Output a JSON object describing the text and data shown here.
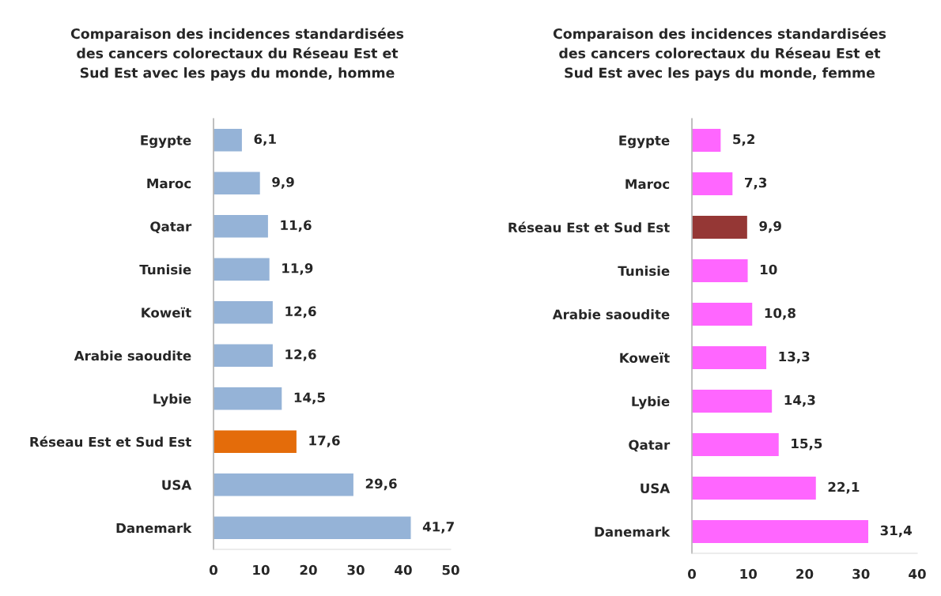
{
  "chart_data": [
    {
      "type": "bar",
      "orientation": "horizontal",
      "title": "Comparaison des incidences standardisées\ndes cancers colorectaux du Réseau Est et\nSud Est avec les pays du monde, homme",
      "categories": [
        "Egypte",
        "Maroc",
        "Qatar",
        "Tunisie",
        "Koweït",
        "Arabie saoudite",
        "Lybie",
        "Réseau Est et Sud Est",
        "USA",
        "Danemark"
      ],
      "values": [
        6.1,
        9.9,
        11.6,
        11.9,
        12.6,
        12.6,
        14.5,
        17.6,
        29.6,
        41.7
      ],
      "value_labels": [
        "6,1",
        "9,9",
        "11,6",
        "11,9",
        "12,6",
        "12,6",
        "14,5",
        "17,6",
        "29,6",
        "41,7"
      ],
      "colors": [
        "#95b3d7",
        "#95b3d7",
        "#95b3d7",
        "#95b3d7",
        "#95b3d7",
        "#95b3d7",
        "#95b3d7",
        "#e46c0a",
        "#95b3d7",
        "#95b3d7"
      ],
      "xlim": [
        0,
        50
      ],
      "xticks": [
        0,
        10,
        20,
        30,
        40,
        50
      ],
      "grid": false,
      "legend": false
    },
    {
      "type": "bar",
      "orientation": "horizontal",
      "title": "Comparaison des incidences standardisées\ndes cancers colorectaux du Réseau Est et\nSud Est avec les pays du monde, femme",
      "categories": [
        "Egypte",
        "Maroc",
        "Réseau Est et Sud Est",
        "Tunisie",
        "Arabie saoudite",
        "Koweït",
        "Lybie",
        "Qatar",
        "USA",
        "Danemark"
      ],
      "values": [
        5.2,
        7.3,
        9.9,
        10,
        10.8,
        13.3,
        14.3,
        15.5,
        22.1,
        31.4
      ],
      "value_labels": [
        "5,2",
        "7,3",
        "9,9",
        "10",
        "10,8",
        "13,3",
        "14,3",
        "15,5",
        "22,1",
        "31,4"
      ],
      "colors": [
        "#ff66ff",
        "#ff66ff",
        "#953735",
        "#ff66ff",
        "#ff66ff",
        "#ff66ff",
        "#ff66ff",
        "#ff66ff",
        "#ff66ff",
        "#ff66ff"
      ],
      "xlim": [
        0,
        40
      ],
      "xticks": [
        0,
        10,
        20,
        30,
        40
      ],
      "grid": false,
      "legend": false
    }
  ]
}
